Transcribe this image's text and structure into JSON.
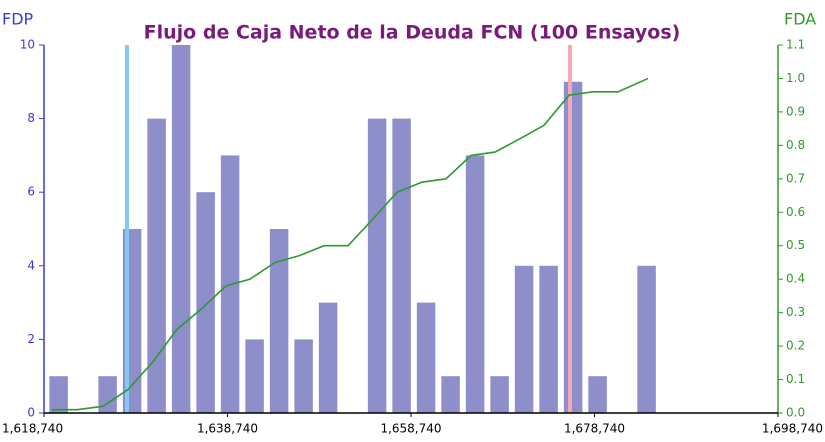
{
  "chart_data": {
    "type": "histogram",
    "title": "Flujo de Caja Neto de la Deuda FCN (100 Ensayos)",
    "y_label": "FDP",
    "y2_label": "FDA",
    "bins": [
      1619000,
      1621670,
      1624340,
      1627010,
      1629680,
      1632350,
      1635020,
      1637690,
      1640360,
      1643030,
      1645700,
      1648370,
      1651040,
      1653710,
      1656380,
      1659050,
      1661720,
      1664390,
      1667060,
      1669730,
      1672400,
      1675070,
      1677740,
      1680410,
      1683080,
      1685750
    ],
    "counts": [
      1,
      0,
      1,
      5,
      8,
      10,
      6,
      7,
      2,
      5,
      2,
      3,
      0,
      8,
      8,
      3,
      1,
      7,
      1,
      4,
      4,
      9,
      1,
      0,
      4
    ],
    "color": "#8e8ecb",
    "series": [
      {
        "name": "FDA",
        "color": "#2e9a2e",
        "axis": "y2",
        "x": [
          1619612,
          1622337,
          1625171,
          1627896,
          1630512,
          1633237,
          1635853,
          1638578,
          1641194,
          1643919,
          1646535,
          1649260,
          1651876,
          1654601,
          1657217,
          1659942,
          1662558,
          1665283,
          1667899,
          1670624,
          1673240,
          1675965,
          1678581,
          1681306,
          1684576
        ],
        "values": [
          0.01,
          0.01,
          0.02,
          0.07,
          0.15,
          0.25,
          0.31,
          0.38,
          0.4,
          0.45,
          0.47,
          0.5,
          0.5,
          0.58,
          0.66,
          0.69,
          0.7,
          0.77,
          0.78,
          0.82,
          0.86,
          0.95,
          0.96,
          0.96,
          1.0
        ]
      }
    ],
    "markers": [
      {
        "x": 1627787,
        "color": "#7fcaf0"
      },
      {
        "x": 1676074,
        "color": "#f5a9b8"
      }
    ],
    "xlim": [
      1618740,
      1698740
    ],
    "xticks": [
      {
        "value": 1618740,
        "label": "1,618,740"
      },
      {
        "value": 1638740,
        "label": "1,638,740"
      },
      {
        "value": 1658740,
        "label": "1,658,740"
      },
      {
        "value": 1678740,
        "label": "1,678,740"
      },
      {
        "value": 1698740,
        "label": "1,698,740"
      }
    ],
    "ylim": [
      0,
      10
    ],
    "yticks": [
      0,
      2,
      4,
      6,
      8,
      10
    ],
    "y2lim": [
      0,
      1.1
    ],
    "y2ticks": [
      {
        "value": 0,
        "label": "0.0"
      },
      0.1,
      0.2,
      0.3,
      0.4,
      0.5,
      0.6,
      0.7,
      0.8,
      0.9,
      {
        "value": 1,
        "label": "1.0"
      },
      1.1
    ],
    "y_color": "#3a3ad8",
    "y2_color": "#2e9a2e",
    "title_color": "#7a1a7a"
  }
}
